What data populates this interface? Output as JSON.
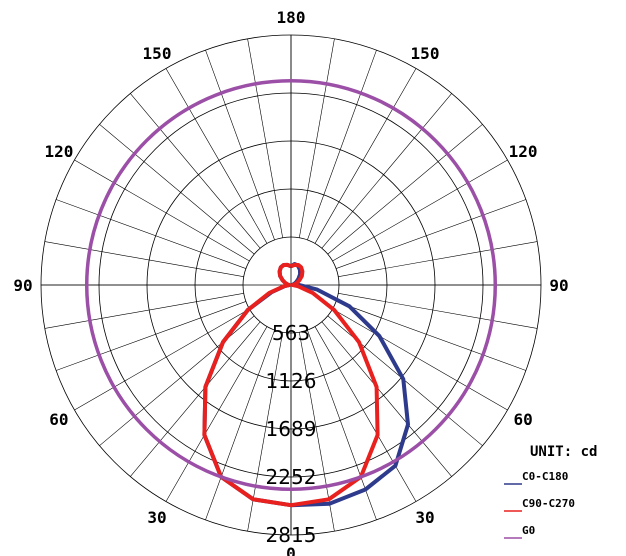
{
  "chart_data": {
    "type": "polar",
    "unit_label": "UNIT: cd",
    "rings": [
      563,
      1126,
      1689,
      2252,
      2815
    ],
    "r_max": 2815,
    "angle_labels": [
      {
        "text": "0",
        "deg": 0
      },
      {
        "text": "30",
        "deg": 30
      },
      {
        "text": "60",
        "deg": 60
      },
      {
        "text": "90",
        "deg": 90
      },
      {
        "text": "120",
        "deg": 120
      },
      {
        "text": "150",
        "deg": 150
      },
      {
        "text": "180",
        "deg": 180
      },
      {
        "text": "150",
        "deg": 210
      },
      {
        "text": "120",
        "deg": 240
      },
      {
        "text": "90",
        "deg": 270
      },
      {
        "text": "60",
        "deg": 300
      },
      {
        "text": "30",
        "deg": 330
      }
    ],
    "series": [
      {
        "name": "C0-C180",
        "color": "#2e3a8c",
        "angles": [
          -180,
          -170,
          -160,
          -150,
          -140,
          -130,
          -120,
          -110,
          -100,
          -90,
          -80,
          -70,
          -60,
          -50,
          -40,
          -30,
          -20,
          -10,
          0,
          10,
          20,
          30,
          40,
          50,
          60,
          70,
          80,
          90,
          100,
          110,
          120,
          130,
          140,
          150,
          160,
          170,
          180
        ],
        "values": [
          210,
          230,
          240,
          230,
          200,
          160,
          110,
          70,
          40,
          20,
          70,
          230,
          560,
          1000,
          1500,
          1950,
          2300,
          2450,
          2480,
          2500,
          2450,
          2350,
          2050,
          1650,
          1150,
          700,
          300,
          90,
          20,
          40,
          70,
          110,
          160,
          200,
          230,
          240,
          210
        ]
      },
      {
        "name": "C90-C270",
        "color": "#e8201e",
        "angles": [
          -180,
          -170,
          -160,
          -150,
          -140,
          -130,
          -120,
          -110,
          -100,
          -90,
          -80,
          -70,
          -60,
          -50,
          -40,
          -30,
          -20,
          -10,
          0,
          10,
          20,
          30,
          40,
          50,
          60,
          70,
          80,
          90,
          100,
          110,
          120,
          130,
          140,
          150,
          160,
          170,
          180
        ],
        "values": [
          210,
          230,
          240,
          230,
          200,
          160,
          110,
          70,
          40,
          20,
          80,
          260,
          560,
          1000,
          1500,
          1950,
          2300,
          2450,
          2480,
          2450,
          2300,
          1950,
          1500,
          1000,
          560,
          260,
          80,
          20,
          40,
          70,
          110,
          160,
          200,
          230,
          240,
          230,
          210
        ]
      },
      {
        "name": "G0",
        "color": "#9b4fa6",
        "angles": [
          -180,
          -150,
          -120,
          -90,
          -60,
          -30,
          0,
          30,
          60,
          90,
          120,
          150,
          180
        ],
        "values": [
          2300,
          2300,
          2300,
          2300,
          2300,
          2300,
          2300,
          2300,
          2300,
          2300,
          2300,
          2300,
          2300
        ]
      }
    ]
  }
}
